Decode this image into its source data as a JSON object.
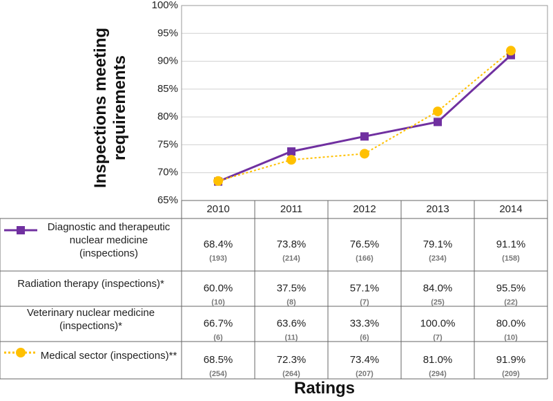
{
  "chart_data": {
    "type": "line",
    "y_label": "Inspections meeting requirements",
    "x_label": "Ratings",
    "categories": [
      "2010",
      "2011",
      "2012",
      "2013",
      "2014"
    ],
    "ylim": [
      65,
      100
    ],
    "yticks": [
      {
        "value": 65,
        "label": "65%"
      },
      {
        "value": 70,
        "label": "70%"
      },
      {
        "value": 75,
        "label": "75%"
      },
      {
        "value": 80,
        "label": "80%"
      },
      {
        "value": 85,
        "label": "85%"
      },
      {
        "value": 90,
        "label": "90%"
      },
      {
        "value": 95,
        "label": "95%"
      },
      {
        "value": 100,
        "label": "100%"
      }
    ],
    "grid": true,
    "series": [
      {
        "name": "Diagnostic and therapeutic nuclear medicine (inspections)",
        "color": "#7030a0",
        "marker": "square",
        "dash": "solid",
        "values": [
          68.4,
          73.8,
          76.5,
          79.1,
          91.1
        ],
        "value_labels": [
          "68.4%",
          "73.8%",
          "76.5%",
          "79.1%",
          "91.1%"
        ],
        "counts": [
          "(193)",
          "(214)",
          "(166)",
          "(234)",
          "(158)"
        ]
      },
      {
        "name": "Radiation therapy (inspections)*",
        "values": [
          60.0,
          37.5,
          57.1,
          84.0,
          95.5
        ],
        "value_labels": [
          "60.0%",
          "37.5%",
          "57.1%",
          "84.0%",
          "95.5%"
        ],
        "counts": [
          "(10)",
          "(8)",
          "(7)",
          "(25)",
          "(22)"
        ]
      },
      {
        "name": "Veterinary nuclear medicine (inspections)*",
        "values": [
          66.7,
          63.6,
          33.3,
          100.0,
          80.0
        ],
        "value_labels": [
          "66.7%",
          "63.6%",
          "33.3%",
          "100.0%",
          "80.0%"
        ],
        "counts": [
          "(6)",
          "(11)",
          "(6)",
          "(7)",
          "(10)"
        ]
      },
      {
        "name": "Medical sector (inspections)**",
        "color": "#ffc000",
        "marker": "circle",
        "dash": "dotted",
        "values": [
          68.5,
          72.3,
          73.4,
          81.0,
          91.9
        ],
        "value_labels": [
          "68.5%",
          "72.3%",
          "73.4%",
          "81.0%",
          "91.9%"
        ],
        "counts": [
          "(254)",
          "(264)",
          "(207)",
          "(294)",
          "(209)"
        ]
      }
    ]
  }
}
